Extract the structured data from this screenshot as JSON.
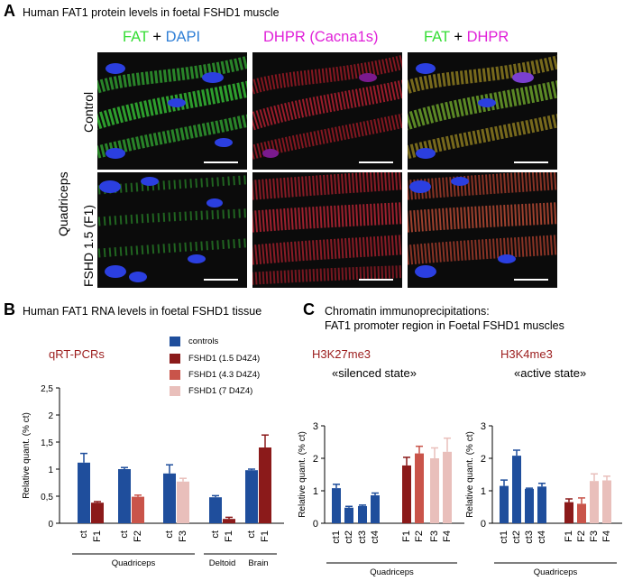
{
  "panelA": {
    "letter": "A",
    "title": "Human FAT1 protein levels in foetal FSHD1 muscle",
    "col1": {
      "a": "FAT",
      "plus": "+",
      "b": "DAPI"
    },
    "col2": {
      "a": "DHPR (Cacna1s)"
    },
    "col3": {
      "a": "FAT",
      "plus": "+",
      "b": "DHPR"
    },
    "tissue": "Quadriceps",
    "row1": "Control",
    "row2": "FSHD 1.5 (F1)"
  },
  "panelB": {
    "letter": "B",
    "title": "Human FAT1 RNA levels in foetal FSHD1 tissue",
    "subtitle": "qRT-PCRs"
  },
  "panelC": {
    "letter": "C",
    "title_line1": "Chromatin immunoprecipitations:",
    "title_line2": "FAT1 promoter region in Foetal FSHD1 muscles",
    "left_mark": "H3K27me3",
    "left_state": "«silenced state»",
    "right_mark": "H3K4me3",
    "right_state": "«active state»"
  },
  "legend": [
    {
      "label": "controls",
      "color": "#1f4e9c"
    },
    {
      "label": "FSHD1 (1.5 D4Z4)",
      "color": "#8b1a1a"
    },
    {
      "label": "FSHD1 (4.3 D4Z4)",
      "color": "#c9544a"
    },
    {
      "label": "FSHD1 (7 D4Z4)",
      "color": "#e9bfbb"
    }
  ],
  "chart_data": [
    {
      "type": "bar",
      "title": "qRT-PCRs",
      "ylabel": "Relative quant. (% ct)",
      "ylim": [
        0,
        2.5
      ],
      "yticks": [
        "0",
        "0,5",
        "1",
        "1,5",
        "2",
        "2,5"
      ],
      "categories": [
        "ct",
        "F1",
        "ct",
        "F2",
        "ct",
        "F3",
        "ct",
        "F1",
        "ct",
        "F1"
      ],
      "values": [
        1.12,
        0.38,
        1.0,
        0.49,
        0.92,
        0.77,
        0.48,
        0.08,
        0.98,
        1.4
      ],
      "errors": [
        0.17,
        0.02,
        0.03,
        0.03,
        0.16,
        0.06,
        0.03,
        0.03,
        0.02,
        0.23
      ],
      "colors": [
        "#1f4e9c",
        "#8b1a1a",
        "#1f4e9c",
        "#c9544a",
        "#1f4e9c",
        "#e9bfbb",
        "#1f4e9c",
        "#8b1a1a",
        "#1f4e9c",
        "#8b1a1a"
      ],
      "groups": [
        {
          "label": "Quadriceps",
          "from": 0,
          "to": 5
        },
        {
          "label": "Deltoid",
          "from": 6,
          "to": 7
        },
        {
          "label": "Brain",
          "from": 8,
          "to": 9
        }
      ]
    },
    {
      "type": "bar",
      "title": "H3K27me3",
      "ylabel": "Relative quant. (% ct)",
      "ylim": [
        0,
        3
      ],
      "yticks": [
        "0",
        "1",
        "2",
        "3"
      ],
      "categories": [
        "ct1",
        "ct2",
        "ct3",
        "ct4",
        "F1",
        "F2",
        "F3",
        "F4"
      ],
      "values": [
        1.08,
        0.48,
        0.53,
        0.86,
        1.78,
        2.15,
        2.0,
        2.2
      ],
      "errors": [
        0.12,
        0.04,
        0.03,
        0.07,
        0.25,
        0.22,
        0.32,
        0.42
      ],
      "colors": [
        "#1f4e9c",
        "#1f4e9c",
        "#1f4e9c",
        "#1f4e9c",
        "#8b1a1a",
        "#c9544a",
        "#e9bfbb",
        "#e9bfbb"
      ],
      "groups": [
        {
          "label": "Quadriceps",
          "from": 0,
          "to": 7
        }
      ]
    },
    {
      "type": "bar",
      "title": "H3K4me3",
      "ylabel": "Relative quant. (% ct)",
      "ylim": [
        0,
        3
      ],
      "yticks": [
        "0",
        "1",
        "2",
        "3"
      ],
      "categories": [
        "ct1",
        "ct2",
        "ct3",
        "ct4",
        "F1",
        "F2",
        "F3",
        "F4"
      ],
      "values": [
        1.15,
        2.08,
        1.06,
        1.13,
        0.65,
        0.6,
        1.3,
        1.32
      ],
      "errors": [
        0.18,
        0.17,
        0.02,
        0.1,
        0.1,
        0.18,
        0.22,
        0.13
      ],
      "colors": [
        "#1f4e9c",
        "#1f4e9c",
        "#1f4e9c",
        "#1f4e9c",
        "#8b1a1a",
        "#c9544a",
        "#e9bfbb",
        "#e9bfbb"
      ],
      "groups": [
        {
          "label": "Quadriceps",
          "from": 0,
          "to": 7
        }
      ]
    }
  ]
}
